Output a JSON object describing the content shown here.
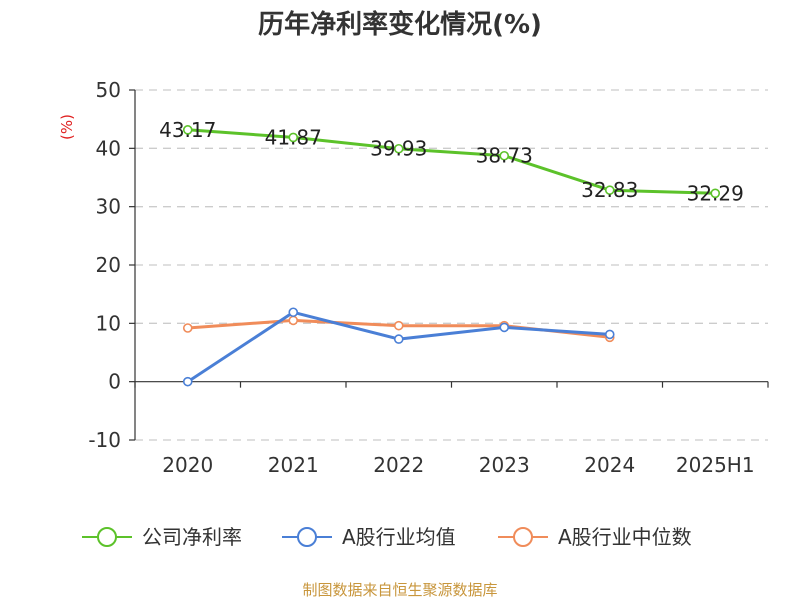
{
  "chart_data": {
    "type": "line",
    "title": "历年净利率变化情况(%)",
    "ylabel": "(%)",
    "xlabel": "",
    "categories": [
      "2020",
      "2021",
      "2022",
      "2023",
      "2024",
      "2025H1"
    ],
    "ylim": [
      -10,
      50
    ],
    "yticks": [
      -10,
      0,
      10,
      20,
      30,
      40,
      50
    ],
    "grid": true,
    "legend_position": "bottom",
    "series": [
      {
        "name": "公司净利率",
        "color": "#5cc22a",
        "values": [
          43.17,
          41.87,
          39.93,
          38.73,
          32.83,
          32.29
        ],
        "labels": [
          "43.17",
          "41.87",
          "39.93",
          "38.73",
          "32.83",
          "32.29"
        ]
      },
      {
        "name": "A股行业均值",
        "color": "#4a7fd6",
        "values": [
          0.0,
          11.9,
          7.3,
          9.3,
          8.1,
          null
        ]
      },
      {
        "name": "A股行业中位数",
        "color": "#f08c5a",
        "values": [
          9.2,
          10.5,
          9.6,
          9.6,
          7.6,
          null
        ]
      }
    ],
    "source": "制图数据来自恒生聚源数据库"
  }
}
